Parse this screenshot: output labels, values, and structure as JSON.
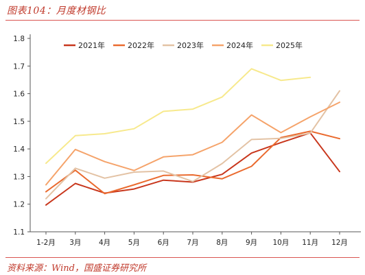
{
  "figure": {
    "title": "图表104：月度材钢比",
    "source": "资料来源：Wind，国盛证券研究所"
  },
  "chart_data": {
    "type": "line",
    "title": "",
    "xlabel": "",
    "ylabel": "",
    "categories": [
      "1-2月",
      "3月",
      "4月",
      "5月",
      "6月",
      "7月",
      "8月",
      "9月",
      "10月",
      "11月",
      "12月"
    ],
    "ylim": [
      1.1,
      1.8
    ],
    "yticks": [
      1.1,
      1.2,
      1.3,
      1.4,
      1.5,
      1.6,
      1.7,
      1.8
    ],
    "grid": false,
    "legend_position": "top",
    "series": [
      {
        "name": "2021年",
        "color": "#c8361c",
        "values": [
          1.197,
          1.275,
          1.24,
          1.255,
          1.287,
          1.28,
          1.308,
          1.385,
          1.423,
          1.458,
          1.318
        ]
      },
      {
        "name": "2022年",
        "color": "#ea6a2e",
        "values": [
          1.245,
          1.323,
          1.238,
          1.27,
          1.304,
          1.306,
          1.292,
          1.337,
          1.441,
          1.464,
          1.437
        ]
      },
      {
        "name": "2023年",
        "color": "#e3c2a4",
        "values": [
          1.22,
          1.33,
          1.294,
          1.316,
          1.32,
          1.282,
          1.347,
          1.434,
          1.438,
          1.457,
          1.61
        ]
      },
      {
        "name": "2024年",
        "color": "#f5a36a",
        "values": [
          1.27,
          1.398,
          1.354,
          1.322,
          1.371,
          1.379,
          1.424,
          1.523,
          1.459,
          1.516,
          1.569
        ]
      },
      {
        "name": "2025年",
        "color": "#f7e98c",
        "values": [
          1.348,
          1.448,
          1.455,
          1.473,
          1.536,
          1.544,
          1.588,
          1.69,
          1.648,
          1.659,
          null
        ]
      }
    ]
  }
}
